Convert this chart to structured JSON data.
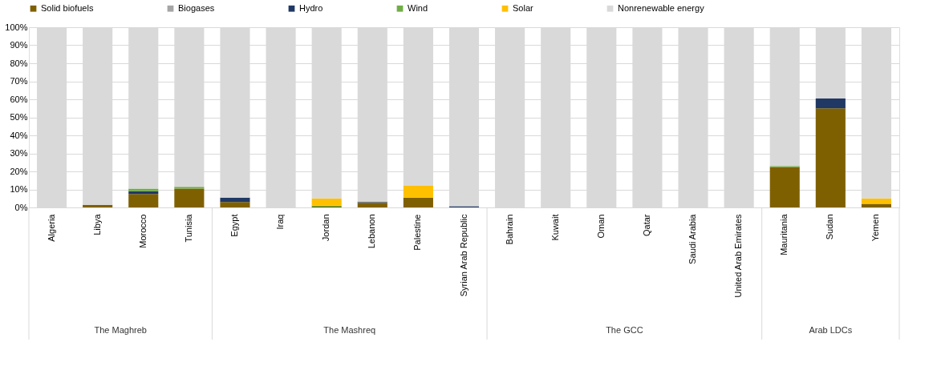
{
  "chart_data": {
    "type": "bar",
    "stacked": true,
    "legend": "top",
    "grid": "y",
    "categories": [
      "Algeria",
      "Libya",
      "Morocco",
      "Tunisia",
      "Egypt",
      "Iraq",
      "Jordan",
      "Lebanon",
      "Palestine",
      "Syrian Arab Republic",
      "Bahrain",
      "Kuwait",
      "Oman",
      "Qatar",
      "Saudi Arabia",
      "United Arab Emirates",
      "Mauritania",
      "Sudan",
      "Yemen"
    ],
    "ylim": [
      0,
      100
    ],
    "yticks": [
      {
        "value": 0,
        "label": "0%"
      },
      {
        "value": 10,
        "label": "10%"
      },
      {
        "value": 20,
        "label": "20%"
      },
      {
        "value": 30,
        "label": "30%"
      },
      {
        "value": 40,
        "label": "40%"
      },
      {
        "value": 50,
        "label": "50%"
      },
      {
        "value": 60,
        "label": "60%"
      },
      {
        "value": 70,
        "label": "70%"
      },
      {
        "value": 80,
        "label": "80%"
      },
      {
        "value": 90,
        "label": "90%"
      },
      {
        "value": 100,
        "label": "100%"
      }
    ],
    "series": [
      {
        "name": "Solid biofuels",
        "color": "#7f6000",
        "values": [
          0,
          1.5,
          7.5,
          10.5,
          3,
          0,
          0.5,
          2.5,
          5.5,
          0,
          0,
          0,
          0,
          0,
          0,
          0,
          22.5,
          55,
          2
        ]
      },
      {
        "name": "Biogases",
        "color": "#a5a5a5",
        "values": [
          0,
          0,
          0,
          0,
          0,
          0,
          0,
          0,
          0,
          0,
          0,
          0,
          0,
          0,
          0,
          0,
          0,
          0,
          0
        ]
      },
      {
        "name": "Hydro",
        "color": "#203864",
        "values": [
          0,
          0,
          1.5,
          0,
          2.5,
          0,
          0,
          0.5,
          0,
          0.7,
          0,
          0,
          0,
          0,
          0,
          0,
          0,
          5.5,
          0
        ]
      },
      {
        "name": "Wind",
        "color": "#70ad47",
        "values": [
          0,
          0,
          1.5,
          1,
          0,
          0,
          0.5,
          0,
          0,
          0,
          0,
          0,
          0,
          0,
          0,
          0,
          0.5,
          0,
          0
        ]
      },
      {
        "name": "Solar",
        "color": "#ffc000",
        "values": [
          0,
          0,
          0,
          0,
          0,
          0,
          4,
          0.5,
          6.5,
          0,
          0,
          0,
          0,
          0,
          0,
          0,
          0,
          0,
          3
        ]
      },
      {
        "name": "Nonrenewable energy",
        "color": "#d9d9d9",
        "values": [
          100,
          98.5,
          89.5,
          88.5,
          94.5,
          100,
          95,
          96.5,
          88,
          99.3,
          100,
          100,
          100,
          100,
          100,
          100,
          77,
          39.5,
          95
        ]
      }
    ],
    "annotations": [
      "The Maghreb",
      "The Mashreq",
      "The GCC",
      "Arab LDCs"
    ]
  }
}
